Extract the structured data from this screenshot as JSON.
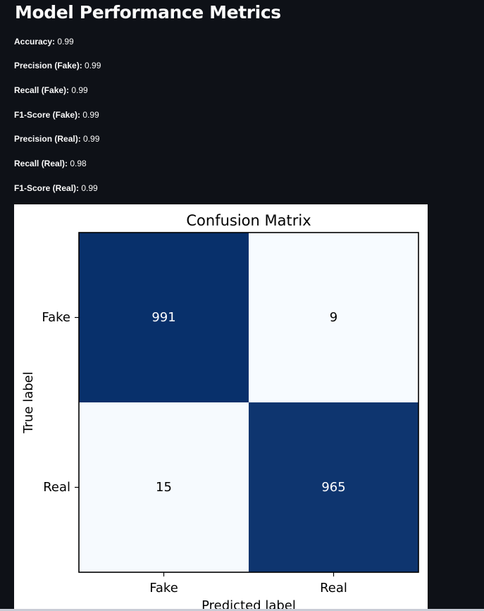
{
  "page": {
    "title": "Model Performance Metrics"
  },
  "metrics": [
    {
      "label": "Accuracy:",
      "value": "0.99"
    },
    {
      "label": "Precision (Fake):",
      "value": "0.99"
    },
    {
      "label": "Recall (Fake):",
      "value": "0.99"
    },
    {
      "label": "F1-Score (Fake):",
      "value": "0.99"
    },
    {
      "label": "Precision (Real):",
      "value": "0.99"
    },
    {
      "label": "Recall (Real):",
      "value": "0.98"
    },
    {
      "label": "F1-Score (Real):",
      "value": "0.99"
    }
  ],
  "chart_data": {
    "type": "heatmap",
    "title": "Confusion Matrix",
    "xlabel": "Predicted label",
    "ylabel": "True label",
    "x_categories": [
      "Fake",
      "Real"
    ],
    "y_categories": [
      "Fake",
      "Real"
    ],
    "values": [
      [
        991,
        9
      ],
      [
        15,
        965
      ]
    ],
    "colormap": "Blues",
    "color_high": "#08306b",
    "color_low": "#f7fbff",
    "text_on_dark": "#ffffff",
    "text_on_light": "#000000",
    "grid": false,
    "legend": "none"
  },
  "colors": {
    "background": "#0e1117",
    "text": "#fafafa",
    "chart_background": "#ffffff"
  }
}
